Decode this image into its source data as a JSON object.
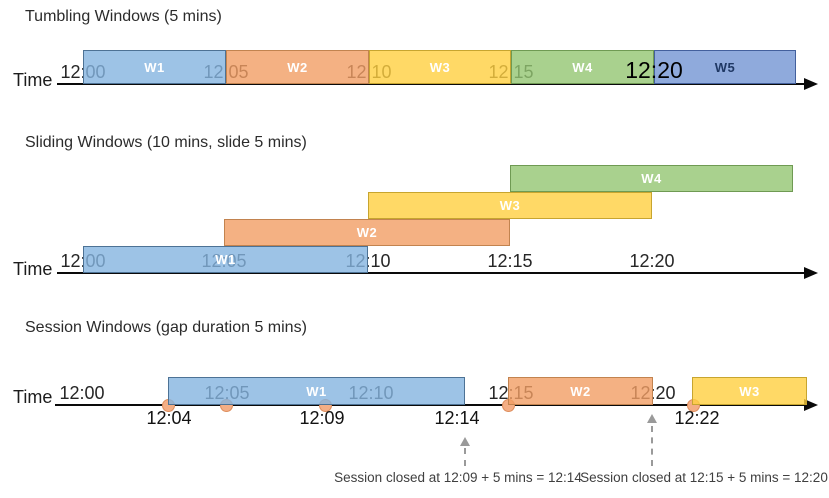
{
  "colors": {
    "window_blue": "#9DC3E6",
    "window_orange": "#F4B183",
    "window_yellow": "#FFD966",
    "window_green": "#A9D18E",
    "window_blue_dark": "#8FAADC",
    "event_dot": "#F4AE85",
    "axis": "#0A0A0A",
    "dashed_arrow": "#9A9A9A"
  },
  "tumbling": {
    "title": "Tumbling Windows (5 mins)",
    "time_label": "Time",
    "ticks": [
      {
        "label": "12:00"
      },
      {
        "label": "12:05"
      },
      {
        "label": "12:10"
      },
      {
        "label": "12:15"
      },
      {
        "label": "12:20",
        "emphasized": true
      }
    ],
    "windows": [
      {
        "label": "W1",
        "start": "12:00",
        "end": "12:05",
        "color": "#9DC3E6"
      },
      {
        "label": "W2",
        "start": "12:05",
        "end": "12:10",
        "color": "#F4B183"
      },
      {
        "label": "W3",
        "start": "12:10",
        "end": "12:15",
        "color": "#FFD966"
      },
      {
        "label": "W4",
        "start": "12:15",
        "end": "12:20",
        "color": "#A9D18E"
      },
      {
        "label": "W5",
        "start": "12:20",
        "color": "#8FAADC"
      }
    ]
  },
  "sliding": {
    "title": "Sliding Windows (10 mins, slide 5 mins)",
    "time_label": "Time",
    "ticks": [
      {
        "label": "12:00"
      },
      {
        "label": "12:05"
      },
      {
        "label": "12:10"
      },
      {
        "label": "12:15"
      },
      {
        "label": "12:20"
      }
    ],
    "windows": [
      {
        "label": "W1",
        "start": "12:00",
        "end": "12:10",
        "color": "#9DC3E6"
      },
      {
        "label": "W2",
        "start": "12:05",
        "end": "12:15",
        "color": "#F4B183"
      },
      {
        "label": "W3",
        "start": "12:10",
        "end": "12:20",
        "color": "#FFD966"
      },
      {
        "label": "W4",
        "start": "12:15",
        "color": "#A9D18E"
      }
    ]
  },
  "session": {
    "title": "Session Windows (gap duration 5 mins)",
    "time_label": "Time",
    "ticks": [
      {
        "label": "12:00"
      },
      {
        "label": "12:05"
      },
      {
        "label": "12:10"
      },
      {
        "label": "12:15"
      },
      {
        "label": "12:20"
      }
    ],
    "windows": [
      {
        "label": "W1",
        "color": "#9DC3E6"
      },
      {
        "label": "W2",
        "start": "12:15",
        "end": "12:20",
        "color": "#F4B183"
      },
      {
        "label": "W3",
        "start": "12:22",
        "color": "#FFD966"
      }
    ],
    "event_dot_count": 5,
    "event_labels": [
      {
        "text": "12:04"
      },
      {
        "text": "12:09"
      },
      {
        "text": "12:14"
      },
      {
        "text": "12:22"
      }
    ],
    "annotations": [
      {
        "text": "Session closed at 12:09 + 5 mins = 12:14"
      },
      {
        "text": "Session closed at 12:15 + 5 mins = 12:20"
      }
    ]
  }
}
